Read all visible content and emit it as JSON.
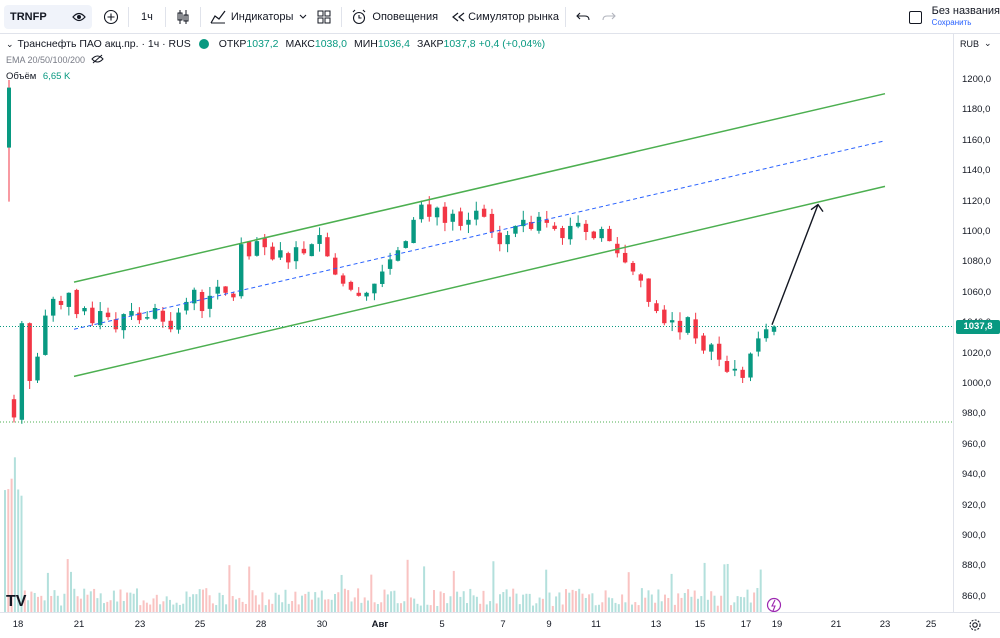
{
  "toolbar": {
    "symbol": "TRNFP",
    "interval": "1ч",
    "indicators_label": "Индикаторы",
    "alerts_label": "Оповещения",
    "replay_label": "Симулятор рынка",
    "save_title": "Без названия",
    "save_sub": "Сохранить"
  },
  "legend": {
    "title": "Транснефть ПАО акц.пр. · 1ч · RUS",
    "open_label": "ОТКР",
    "open": "1037,2",
    "high_label": "МАКС",
    "high": "1038,0",
    "low_label": "МИН",
    "low": "1036,4",
    "close_label": "ЗАКР",
    "close": "1037,8",
    "change": "+0,4 (+0,04%)",
    "ema_label": "EMA 20/50/100/200",
    "volume_label": "Объём",
    "volume_value": "6,65 K"
  },
  "price_axis": {
    "currency": "RUB",
    "ticks": [
      "1200,0",
      "1180,0",
      "1160,0",
      "1140,0",
      "1120,0",
      "1100,0",
      "1080,0",
      "1060,0",
      "1040,0",
      "1020,0",
      "1000,0",
      "980,0",
      "960,0",
      "940,0",
      "920,0",
      "900,0",
      "880,0",
      "860,0"
    ],
    "last_price": "1037,8"
  },
  "time_axis": {
    "ticks": [
      "18",
      "21",
      "23",
      "25",
      "28",
      "30",
      "Авг",
      "5",
      "7",
      "9",
      "11",
      "13",
      "15",
      "17",
      "19",
      "21",
      "23",
      "25"
    ]
  },
  "colors": {
    "up": "#089981",
    "down": "#f23645",
    "channel": "#4caf50",
    "midline": "#2962ff",
    "arrow": "#131722"
  },
  "chart_data": {
    "type": "candlestick",
    "ylim": [
      850,
      1210
    ],
    "channel_price": {
      "upper": [
        1067,
        1191
      ],
      "lower": [
        1005,
        1130
      ],
      "middle": [
        1036,
        1160
      ]
    },
    "channel_price_note_units": "RUB at channel start / end",
    "closes": [
      978,
      1040,
      1002,
      1018,
      1045,
      1056,
      1052,
      1060,
      1046,
      1050,
      1040,
      1048,
      1044,
      1036,
      1046,
      1048,
      1042,
      1044,
      1050,
      1041,
      1036,
      1047,
      1054,
      1062,
      1048,
      1058,
      1064,
      1060,
      1057,
      1092,
      1084,
      1094,
      1090,
      1082,
      1088,
      1080,
      1090,
      1086,
      1092,
      1098,
      1084,
      1072,
      1066,
      1062,
      1058,
      1060,
      1066,
      1074,
      1082,
      1088,
      1094,
      1108,
      1118,
      1110,
      1116,
      1106,
      1112,
      1104,
      1108,
      1114,
      1110,
      1100,
      1092,
      1098,
      1104,
      1108,
      1102,
      1110,
      1106,
      1102,
      1096,
      1104,
      1106,
      1100,
      1096,
      1102,
      1094,
      1086,
      1080,
      1074,
      1068,
      1054,
      1048,
      1040,
      1042,
      1034,
      1044,
      1030,
      1022,
      1026,
      1016,
      1008,
      1010,
      1004,
      1020,
      1030,
      1036,
      1037.8
    ],
    "volume_bars_note": "relative"
  }
}
